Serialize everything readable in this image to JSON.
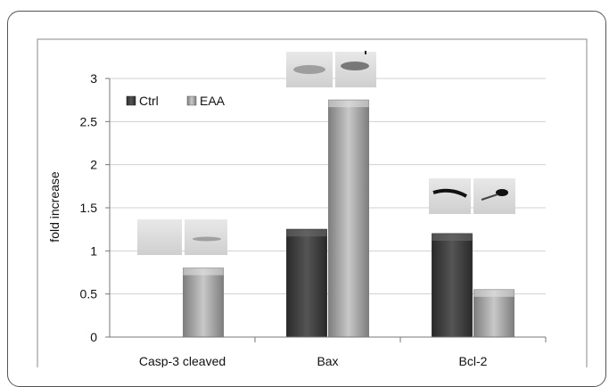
{
  "chart_data": {
    "type": "bar",
    "categories": [
      "Casp-3 cleaved",
      "Bax",
      "Bcl-2"
    ],
    "series": [
      {
        "name": "Ctrl",
        "values": [
          0,
          1.25,
          1.2
        ],
        "color": "#3a3a3a"
      },
      {
        "name": "EAA",
        "values": [
          0.8,
          2.75,
          0.55
        ],
        "color": "#9a9a9a"
      }
    ],
    "ylabel": "fold increase",
    "ylim": [
      0,
      3
    ],
    "yticks": [
      "0",
      "0.5",
      "1",
      "1.5",
      "2",
      "2.5",
      "3"
    ],
    "grid": true,
    "legend": "top-left",
    "blot_insets": [
      "Casp-3 cleaved",
      "Bax",
      "Bcl-2"
    ]
  }
}
